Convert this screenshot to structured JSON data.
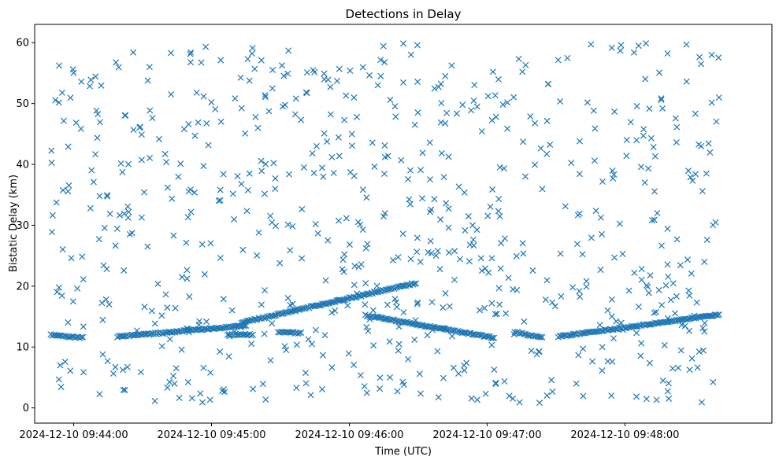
{
  "chart_data": {
    "type": "scatter",
    "title": "Detections in Delay",
    "xlabel": "Time (UTC)",
    "ylabel": "Bistatic Delay (km)",
    "x_tick_labels": [
      "2024-12-10 09:44:00",
      "2024-12-10 09:45:00",
      "2024-12-10 09:46:00",
      "2024-12-10 09:47:00",
      "2024-12-10 09:48:00"
    ],
    "y_ticks": [
      0,
      10,
      20,
      30,
      40,
      50,
      60
    ],
    "xlim": [
      "2024-12-10 09:43:43",
      "2024-12-10 09:49:04"
    ],
    "ylim": [
      -2.5,
      63
    ],
    "grid": false,
    "marker": "x",
    "color": "#1f77b4",
    "track_segments": [
      {
        "start": "2024-12-10 09:43:50",
        "end": "2024-12-10 09:44:04",
        "delay_start": 12.0,
        "delay_end": 11.5
      },
      {
        "start": "2024-12-10 09:44:19",
        "end": "2024-12-10 09:45:15",
        "delay_start": 11.7,
        "delay_end": 13.5
      },
      {
        "start": "2024-12-10 09:45:13",
        "end": "2024-12-10 09:46:29",
        "delay_start": 14.0,
        "delay_end": 20.5
      },
      {
        "start": "2024-12-10 09:45:07",
        "end": "2024-12-10 09:45:18",
        "delay_start": 12.0,
        "delay_end": 12.0
      },
      {
        "start": "2024-12-10 09:45:29",
        "end": "2024-12-10 09:45:39",
        "delay_start": 12.5,
        "delay_end": 12.3
      },
      {
        "start": "2024-12-10 09:46:07",
        "end": "2024-12-10 09:47:03",
        "delay_start": 15.2,
        "delay_end": 11.5
      },
      {
        "start": "2024-12-10 09:47:12",
        "end": "2024-12-10 09:47:24",
        "delay_start": 12.5,
        "delay_end": 11.5
      },
      {
        "start": "2024-12-10 09:47:31",
        "end": "2024-12-10 09:48:41",
        "delay_start": 11.7,
        "delay_end": 15.3
      }
    ]
  }
}
